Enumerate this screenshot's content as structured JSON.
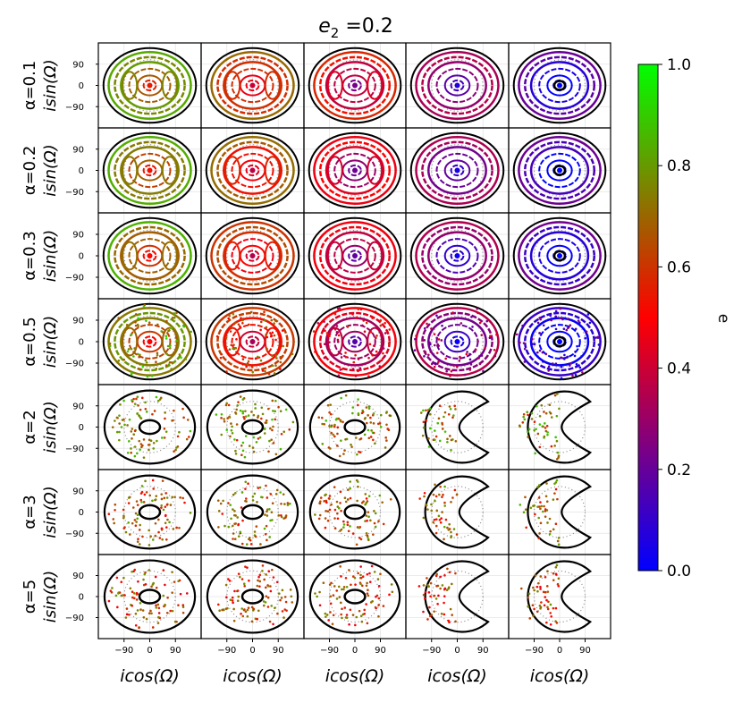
{
  "chart_data": {
    "type": "scatter",
    "title": "e₂ =0.2",
    "title_main": "e",
    "title_sub": "2",
    "title_tail": " =0.2",
    "xlabel": "icos(Ω)",
    "ylabel": "isin(Ω)",
    "x_ticks": [
      -90,
      0,
      90
    ],
    "y_ticks": [
      90,
      0,
      -90
    ],
    "x_tick_labels": [
      "−90",
      "0",
      "90"
    ],
    "y_tick_labels": [
      "90",
      "0",
      "−90"
    ],
    "xlim": [
      -180,
      180
    ],
    "ylim": [
      -180,
      180
    ],
    "alpha_labels": [
      "α=0.1",
      "α=0.2",
      "α=0.3",
      "α=0.5",
      "α=2",
      "α=3",
      "α=5"
    ],
    "n_columns": 5,
    "colorbar": {
      "label": "e",
      "range": [
        0.0,
        1.0
      ],
      "ticks": [
        "0.0",
        "0.2",
        "0.4",
        "0.6",
        "0.8",
        "1.0"
      ],
      "colors": [
        "#0000ff",
        "#800080",
        "#ff0000",
        "#808000",
        "#00ff00"
      ]
    },
    "series": [
      {
        "name": "orbits",
        "values": "contour curves coloured by eccentricity e (0 to 1)"
      }
    ]
  }
}
